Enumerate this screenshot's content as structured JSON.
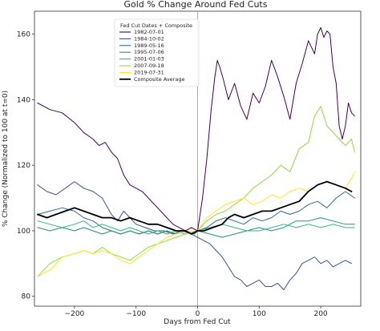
{
  "chart_data": {
    "type": "line",
    "title": "Gold % Change Around Fed Cuts",
    "xlabel": "Days from Fed Cut",
    "ylabel": "% Change (Normalized to 100 at t=0)",
    "xlim": [
      -265,
      265
    ],
    "ylim": [
      77,
      167
    ],
    "x_ticks": [
      -200,
      -100,
      0,
      100,
      200
    ],
    "y_ticks": [
      80,
      100,
      120,
      140,
      160
    ],
    "x_tick_labels": [
      "−200",
      "−100",
      "0",
      "100",
      "200"
    ],
    "y_tick_labels": [
      "80",
      "100",
      "120",
      "140",
      "160"
    ],
    "vline_x": 0,
    "grid": false,
    "legend": {
      "title": "Fed Cut Dates + Composite",
      "placement": "top-left"
    },
    "series": [
      {
        "name": "1982-07-01",
        "color": "#440154",
        "width": 1,
        "points": [
          [
            -260,
            139
          ],
          [
            -240,
            137
          ],
          [
            -220,
            136
          ],
          [
            -200,
            133
          ],
          [
            -185,
            130
          ],
          [
            -170,
            128
          ],
          [
            -160,
            126
          ],
          [
            -150,
            127
          ],
          [
            -140,
            124
          ],
          [
            -130,
            122
          ],
          [
            -120,
            117
          ],
          [
            -110,
            114
          ],
          [
            -100,
            113
          ],
          [
            -90,
            112
          ],
          [
            -80,
            110
          ],
          [
            -70,
            108
          ],
          [
            -60,
            106
          ],
          [
            -50,
            104
          ],
          [
            -40,
            102
          ],
          [
            -30,
            101
          ],
          [
            -20,
            100
          ],
          [
            -10,
            101
          ],
          [
            0,
            100
          ],
          [
            8,
            110
          ],
          [
            15,
            122
          ],
          [
            22,
            137
          ],
          [
            28,
            147
          ],
          [
            32,
            152
          ],
          [
            36,
            150
          ],
          [
            42,
            146
          ],
          [
            50,
            140
          ],
          [
            60,
            145
          ],
          [
            70,
            138
          ],
          [
            80,
            134
          ],
          [
            90,
            142
          ],
          [
            100,
            139
          ],
          [
            110,
            144
          ],
          [
            120,
            152
          ],
          [
            130,
            147
          ],
          [
            140,
            141
          ],
          [
            150,
            134
          ],
          [
            160,
            145
          ],
          [
            170,
            151
          ],
          [
            180,
            158
          ],
          [
            190,
            154
          ],
          [
            195,
            160
          ],
          [
            200,
            162
          ],
          [
            205,
            159
          ],
          [
            210,
            161
          ],
          [
            215,
            160
          ],
          [
            220,
            150
          ],
          [
            225,
            145
          ],
          [
            230,
            132
          ],
          [
            235,
            128
          ],
          [
            240,
            132
          ],
          [
            245,
            139
          ],
          [
            250,
            136
          ],
          [
            255,
            135
          ]
        ]
      },
      {
        "name": "1984-10-02",
        "color": "#3b528b",
        "width": 1,
        "points": [
          [
            -260,
            114
          ],
          [
            -245,
            112
          ],
          [
            -230,
            111
          ],
          [
            -215,
            113
          ],
          [
            -200,
            115
          ],
          [
            -185,
            113
          ],
          [
            -170,
            112
          ],
          [
            -155,
            110
          ],
          [
            -140,
            105
          ],
          [
            -130,
            103
          ],
          [
            -120,
            106
          ],
          [
            -110,
            104
          ],
          [
            -100,
            102
          ],
          [
            -85,
            101
          ],
          [
            -70,
            100
          ],
          [
            -55,
            100
          ],
          [
            -40,
            99
          ],
          [
            -25,
            100
          ],
          [
            -10,
            99
          ],
          [
            0,
            98
          ],
          [
            10,
            97
          ],
          [
            20,
            96
          ],
          [
            30,
            94
          ],
          [
            40,
            92
          ],
          [
            50,
            89
          ],
          [
            60,
            86
          ],
          [
            70,
            85
          ],
          [
            80,
            83
          ],
          [
            90,
            84
          ],
          [
            100,
            85
          ],
          [
            110,
            83
          ],
          [
            120,
            83
          ],
          [
            130,
            84
          ],
          [
            140,
            82
          ],
          [
            150,
            85
          ],
          [
            160,
            87
          ],
          [
            170,
            90
          ],
          [
            180,
            91
          ],
          [
            190,
            92
          ],
          [
            200,
            90
          ],
          [
            210,
            91
          ],
          [
            220,
            89
          ],
          [
            230,
            90
          ],
          [
            240,
            91
          ],
          [
            250,
            90
          ]
        ]
      },
      {
        "name": "1989-05-16",
        "color": "#31688e",
        "width": 1,
        "points": [
          [
            -260,
            105
          ],
          [
            -240,
            106
          ],
          [
            -220,
            107
          ],
          [
            -200,
            106
          ],
          [
            -185,
            104
          ],
          [
            -170,
            103
          ],
          [
            -155,
            101
          ],
          [
            -140,
            100
          ],
          [
            -125,
            99
          ],
          [
            -110,
            100
          ],
          [
            -95,
            99
          ],
          [
            -80,
            100
          ],
          [
            -65,
            99
          ],
          [
            -50,
            100
          ],
          [
            -35,
            99
          ],
          [
            -20,
            100
          ],
          [
            -5,
            99
          ],
          [
            0,
            100
          ],
          [
            15,
            101
          ],
          [
            30,
            103
          ],
          [
            45,
            104
          ],
          [
            60,
            103
          ],
          [
            75,
            102
          ],
          [
            90,
            104
          ],
          [
            105,
            103
          ],
          [
            120,
            104
          ],
          [
            135,
            106
          ],
          [
            150,
            105
          ],
          [
            165,
            106
          ],
          [
            180,
            108
          ],
          [
            195,
            109
          ],
          [
            210,
            107
          ],
          [
            225,
            110
          ],
          [
            240,
            112
          ],
          [
            255,
            110
          ]
        ]
      },
      {
        "name": "1995-07-06",
        "color": "#21918c",
        "width": 1,
        "points": [
          [
            -260,
            101
          ],
          [
            -240,
            100
          ],
          [
            -220,
            101
          ],
          [
            -200,
            100
          ],
          [
            -185,
            101
          ],
          [
            -170,
            100
          ],
          [
            -155,
            99
          ],
          [
            -140,
            100
          ],
          [
            -125,
            99
          ],
          [
            -110,
            100
          ],
          [
            -95,
            99
          ],
          [
            -80,
            100
          ],
          [
            -65,
            99
          ],
          [
            -50,
            100
          ],
          [
            -35,
            99
          ],
          [
            -20,
            100
          ],
          [
            0,
            100
          ],
          [
            20,
            99
          ],
          [
            40,
            98
          ],
          [
            60,
            99
          ],
          [
            80,
            100
          ],
          [
            100,
            101
          ],
          [
            120,
            100
          ],
          [
            140,
            101
          ],
          [
            160,
            103
          ],
          [
            180,
            103
          ],
          [
            200,
            104
          ],
          [
            220,
            103
          ],
          [
            240,
            102
          ],
          [
            255,
            102
          ]
        ]
      },
      {
        "name": "2001-01-03",
        "color": "#35b779",
        "width": 1,
        "points": [
          [
            -260,
            103
          ],
          [
            -240,
            102
          ],
          [
            -220,
            101
          ],
          [
            -200,
            102
          ],
          [
            -185,
            103
          ],
          [
            -170,
            101
          ],
          [
            -155,
            102
          ],
          [
            -140,
            101
          ],
          [
            -125,
            100
          ],
          [
            -110,
            101
          ],
          [
            -95,
            100
          ],
          [
            -80,
            99
          ],
          [
            -65,
            100
          ],
          [
            -50,
            99
          ],
          [
            -35,
            100
          ],
          [
            -20,
            99
          ],
          [
            0,
            100
          ],
          [
            20,
            101
          ],
          [
            40,
            102
          ],
          [
            60,
            101
          ],
          [
            80,
            100
          ],
          [
            100,
            100
          ],
          [
            120,
            101
          ],
          [
            140,
            102
          ],
          [
            160,
            101
          ],
          [
            180,
            102
          ],
          [
            200,
            101
          ],
          [
            220,
            102
          ],
          [
            240,
            101
          ],
          [
            255,
            101
          ]
        ]
      },
      {
        "name": "2007-09-18",
        "color": "#90d743",
        "width": 1,
        "points": [
          [
            -260,
            86
          ],
          [
            -240,
            90
          ],
          [
            -220,
            92
          ],
          [
            -200,
            93
          ],
          [
            -185,
            94
          ],
          [
            -170,
            93
          ],
          [
            -155,
            95
          ],
          [
            -140,
            93
          ],
          [
            -125,
            92
          ],
          [
            -110,
            91
          ],
          [
            -95,
            93
          ],
          [
            -80,
            95
          ],
          [
            -65,
            96
          ],
          [
            -50,
            97
          ],
          [
            -35,
            98
          ],
          [
            -20,
            99
          ],
          [
            0,
            100
          ],
          [
            15,
            103
          ],
          [
            30,
            105
          ],
          [
            45,
            106
          ],
          [
            60,
            108
          ],
          [
            75,
            110
          ],
          [
            90,
            113
          ],
          [
            105,
            115
          ],
          [
            120,
            117
          ],
          [
            135,
            120
          ],
          [
            150,
            118
          ],
          [
            165,
            125
          ],
          [
            180,
            127
          ],
          [
            190,
            135
          ],
          [
            200,
            138
          ],
          [
            210,
            132
          ],
          [
            220,
            130
          ],
          [
            230,
            128
          ],
          [
            240,
            126
          ],
          [
            250,
            128
          ],
          [
            255,
            124
          ]
        ]
      },
      {
        "name": "2019-07-31",
        "color": "#fde725",
        "width": 1,
        "points": [
          [
            -260,
            86
          ],
          [
            -240,
            88
          ],
          [
            -220,
            92
          ],
          [
            -200,
            93
          ],
          [
            -185,
            94
          ],
          [
            -170,
            93
          ],
          [
            -155,
            94
          ],
          [
            -140,
            93
          ],
          [
            -125,
            91
          ],
          [
            -110,
            90
          ],
          [
            -95,
            92
          ],
          [
            -80,
            94
          ],
          [
            -65,
            96
          ],
          [
            -50,
            98
          ],
          [
            -35,
            99
          ],
          [
            -20,
            100
          ],
          [
            0,
            100
          ],
          [
            15,
            104
          ],
          [
            30,
            106
          ],
          [
            45,
            108
          ],
          [
            60,
            109
          ],
          [
            75,
            110
          ],
          [
            90,
            108
          ],
          [
            105,
            109
          ],
          [
            120,
            111
          ],
          [
            135,
            110
          ],
          [
            150,
            112
          ],
          [
            165,
            113
          ],
          [
            180,
            112
          ],
          [
            195,
            114
          ],
          [
            210,
            115
          ],
          [
            225,
            114
          ],
          [
            240,
            113
          ],
          [
            250,
            116
          ],
          [
            255,
            118
          ]
        ]
      },
      {
        "name": "Composite Average",
        "color": "#000000",
        "width": 1.8,
        "points": [
          [
            -260,
            105
          ],
          [
            -245,
            104
          ],
          [
            -230,
            105
          ],
          [
            -215,
            106
          ],
          [
            -200,
            107
          ],
          [
            -185,
            106
          ],
          [
            -170,
            105
          ],
          [
            -155,
            104
          ],
          [
            -140,
            104
          ],
          [
            -125,
            103
          ],
          [
            -110,
            104
          ],
          [
            -95,
            103
          ],
          [
            -80,
            102
          ],
          [
            -65,
            102
          ],
          [
            -50,
            101
          ],
          [
            -35,
            100
          ],
          [
            -20,
            100
          ],
          [
            -10,
            99
          ],
          [
            0,
            100
          ],
          [
            10,
            100
          ],
          [
            25,
            101
          ],
          [
            40,
            102
          ],
          [
            50,
            104
          ],
          [
            60,
            105
          ],
          [
            75,
            104
          ],
          [
            90,
            105
          ],
          [
            105,
            106
          ],
          [
            120,
            106
          ],
          [
            135,
            107
          ],
          [
            150,
            108
          ],
          [
            165,
            109
          ],
          [
            180,
            112
          ],
          [
            195,
            114
          ],
          [
            210,
            115
          ],
          [
            225,
            114
          ],
          [
            240,
            113
          ],
          [
            250,
            112
          ]
        ]
      }
    ]
  }
}
